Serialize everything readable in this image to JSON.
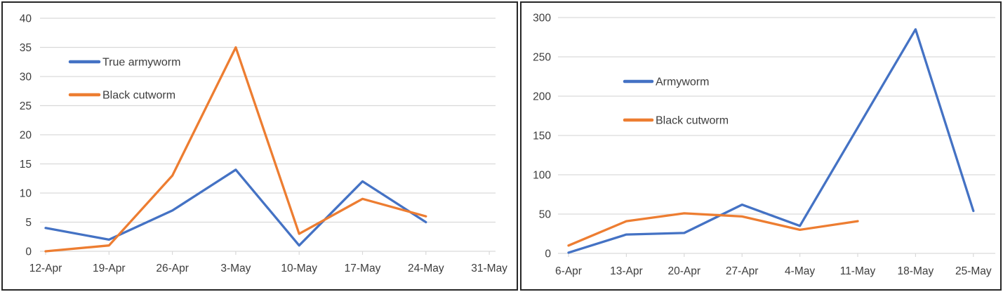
{
  "colors": {
    "series_blue": "#4472C4",
    "series_orange": "#ED7D31",
    "gridline": "#D9D9D9",
    "axis_text": "#3d3d3d",
    "panel_border": "#262626",
    "background": "#FFFFFF"
  },
  "chart_data": [
    {
      "type": "line",
      "title": "",
      "xlabel": "",
      "ylabel": "",
      "grid": true,
      "legend_position": "inside-top-left",
      "ylim": [
        0,
        40
      ],
      "y_ticks": [
        0,
        5,
        10,
        15,
        20,
        25,
        30,
        35,
        40
      ],
      "categories": [
        "12-Apr",
        "19-Apr",
        "26-Apr",
        "3-May",
        "10-May",
        "17-May",
        "24-May",
        "31-May"
      ],
      "legend": [
        {
          "label": "True armyworm",
          "color": "#4472C4"
        },
        {
          "label": "Black cutworm",
          "color": "#ED7D31"
        }
      ],
      "series": [
        {
          "name": "True armyworm",
          "color": "#4472C4",
          "values": [
            4,
            2,
            7,
            14,
            1,
            12,
            5,
            null
          ]
        },
        {
          "name": "Black cutworm",
          "color": "#ED7D31",
          "values": [
            0,
            1,
            13,
            35,
            3,
            9,
            6,
            null
          ]
        }
      ]
    },
    {
      "type": "line",
      "title": "",
      "xlabel": "",
      "ylabel": "",
      "grid": true,
      "legend_position": "inside-top-left",
      "ylim": [
        0,
        300
      ],
      "y_ticks": [
        0,
        50,
        100,
        150,
        200,
        250,
        300
      ],
      "categories": [
        "6-Apr",
        "13-Apr",
        "20-Apr",
        "27-Apr",
        "4-May",
        "11-May",
        "18-May",
        "25-May"
      ],
      "legend": [
        {
          "label": "Armyworm",
          "color": "#4472C4"
        },
        {
          "label": "Black cutworm",
          "color": "#ED7D31"
        }
      ],
      "series": [
        {
          "name": "Armyworm",
          "color": "#4472C4",
          "values": [
            1,
            24,
            26,
            62,
            35,
            160,
            285,
            54
          ]
        },
        {
          "name": "Black cutworm",
          "color": "#ED7D31",
          "values": [
            10,
            41,
            51,
            47,
            30,
            41,
            null,
            null
          ]
        }
      ]
    }
  ]
}
